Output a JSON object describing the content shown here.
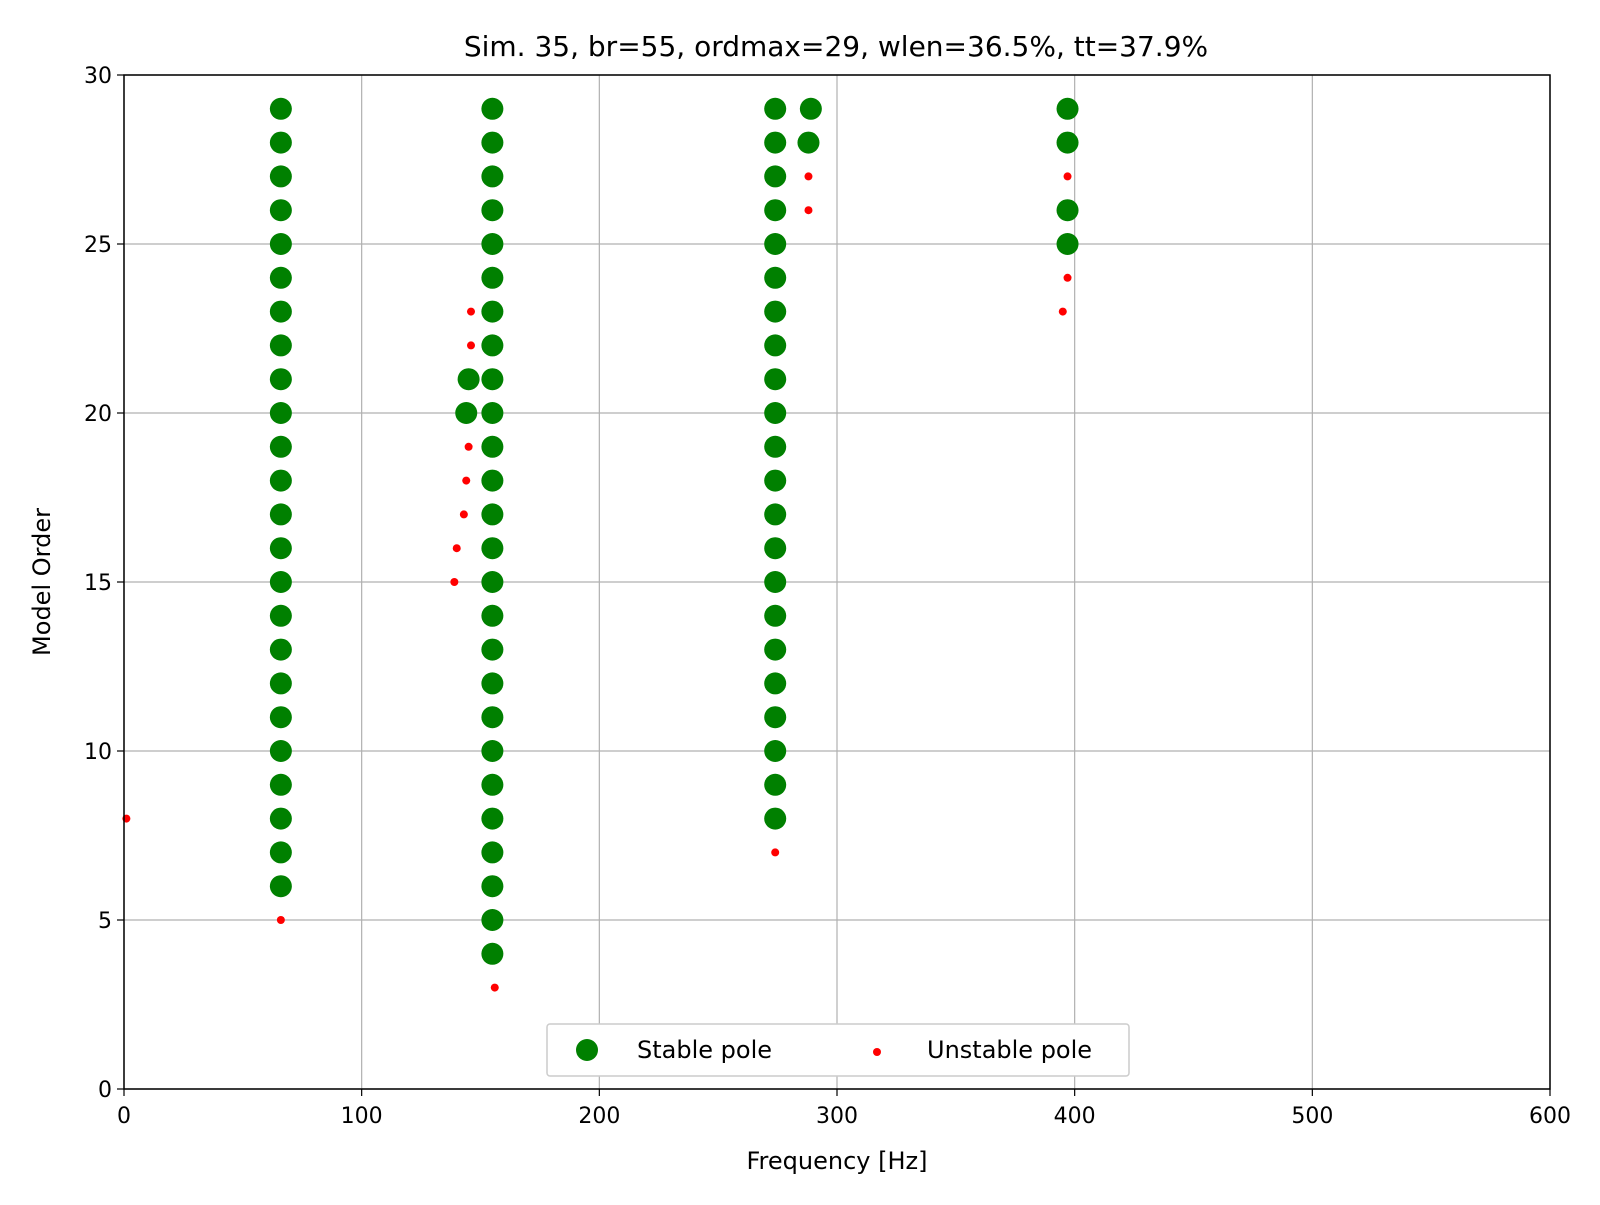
{
  "chart_data": {
    "type": "scatter",
    "title": "Sim. 35, br=55, ordmax=29, wlen=36.5%, tt=37.9%",
    "xlabel": "Frequency [Hz]",
    "ylabel": "Model Order",
    "xlim": [
      0,
      600
    ],
    "ylim": [
      0,
      30
    ],
    "xticks": [
      0,
      100,
      200,
      300,
      400,
      500,
      600
    ],
    "yticks": [
      0,
      5,
      10,
      15,
      20,
      25,
      30
    ],
    "grid": true,
    "legend_position": "bottom-center",
    "series": [
      {
        "name": "Stable pole",
        "color": "#008000",
        "marker": "large-circle",
        "points": [
          [
            66,
            6
          ],
          [
            66,
            7
          ],
          [
            66,
            8
          ],
          [
            66,
            9
          ],
          [
            66,
            10
          ],
          [
            66,
            11
          ],
          [
            66,
            12
          ],
          [
            66,
            13
          ],
          [
            66,
            14
          ],
          [
            66,
            15
          ],
          [
            66,
            16
          ],
          [
            66,
            17
          ],
          [
            66,
            18
          ],
          [
            66,
            19
          ],
          [
            66,
            20
          ],
          [
            66,
            21
          ],
          [
            66,
            22
          ],
          [
            66,
            23
          ],
          [
            66,
            24
          ],
          [
            66,
            25
          ],
          [
            66,
            26
          ],
          [
            66,
            27
          ],
          [
            66,
            28
          ],
          [
            66,
            29
          ],
          [
            155,
            4
          ],
          [
            155,
            5
          ],
          [
            155,
            6
          ],
          [
            155,
            7
          ],
          [
            155,
            8
          ],
          [
            155,
            9
          ],
          [
            155,
            10
          ],
          [
            155,
            11
          ],
          [
            155,
            12
          ],
          [
            155,
            13
          ],
          [
            155,
            14
          ],
          [
            155,
            15
          ],
          [
            155,
            16
          ],
          [
            155,
            17
          ],
          [
            155,
            18
          ],
          [
            155,
            19
          ],
          [
            155,
            20
          ],
          [
            155,
            21
          ],
          [
            155,
            22
          ],
          [
            155,
            23
          ],
          [
            155,
            24
          ],
          [
            155,
            25
          ],
          [
            155,
            26
          ],
          [
            155,
            27
          ],
          [
            155,
            28
          ],
          [
            155,
            29
          ],
          [
            144,
            20
          ],
          [
            145,
            21
          ],
          [
            274,
            8
          ],
          [
            274,
            9
          ],
          [
            274,
            10
          ],
          [
            274,
            11
          ],
          [
            274,
            12
          ],
          [
            274,
            13
          ],
          [
            274,
            14
          ],
          [
            274,
            15
          ],
          [
            274,
            16
          ],
          [
            274,
            17
          ],
          [
            274,
            18
          ],
          [
            274,
            19
          ],
          [
            274,
            20
          ],
          [
            274,
            21
          ],
          [
            274,
            22
          ],
          [
            274,
            23
          ],
          [
            274,
            24
          ],
          [
            274,
            25
          ],
          [
            274,
            26
          ],
          [
            274,
            27
          ],
          [
            274,
            28
          ],
          [
            274,
            29
          ],
          [
            288,
            28
          ],
          [
            289,
            29
          ],
          [
            397,
            25
          ],
          [
            397,
            26
          ],
          [
            397,
            28
          ],
          [
            397,
            29
          ]
        ]
      },
      {
        "name": "Unstable pole",
        "color": "#ff0000",
        "marker": "small-dot",
        "points": [
          [
            1,
            8
          ],
          [
            66,
            5
          ],
          [
            156,
            3
          ],
          [
            139,
            15
          ],
          [
            140,
            16
          ],
          [
            143,
            17
          ],
          [
            144,
            18
          ],
          [
            145,
            19
          ],
          [
            146,
            22
          ],
          [
            146,
            23
          ],
          [
            274,
            7
          ],
          [
            288,
            26
          ],
          [
            288,
            27
          ],
          [
            395,
            23
          ],
          [
            397,
            24
          ],
          [
            397,
            27
          ]
        ]
      }
    ]
  }
}
